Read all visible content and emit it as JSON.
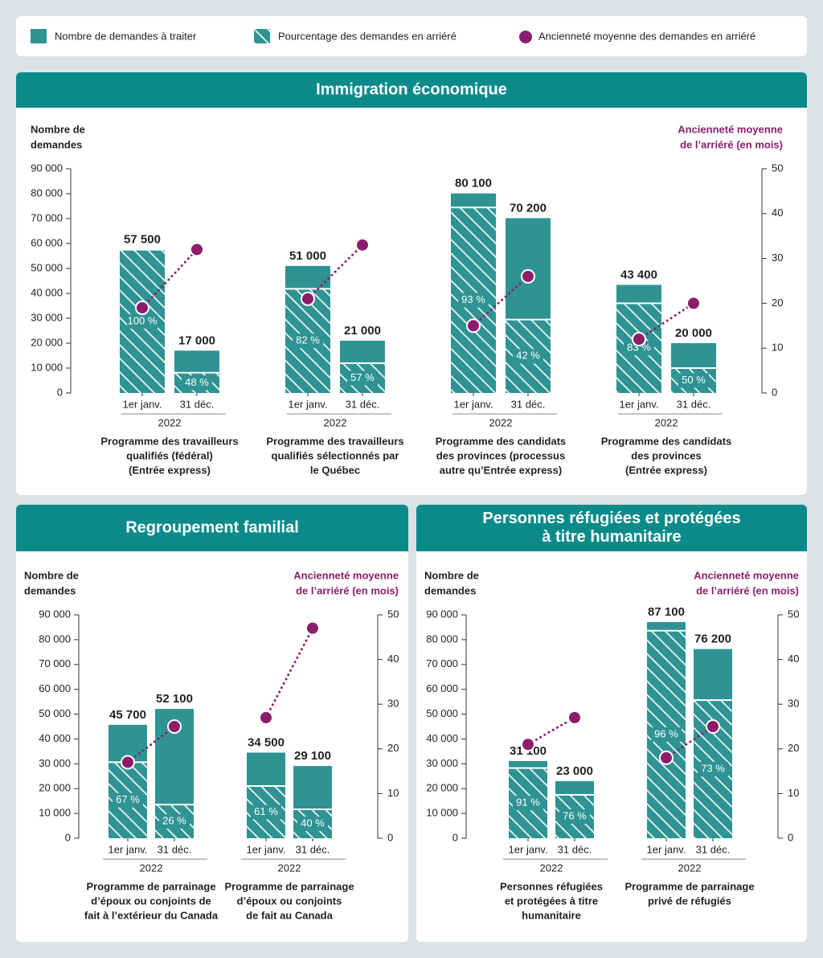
{
  "chart_data": [
    {
      "type": "bar",
      "title": [
        "Immigration économique"
      ],
      "ylabel": [
        "Nombre de",
        "demandes"
      ],
      "y2label": [
        "Ancienneté moyenne",
        "de l’arriéré (en mois)"
      ],
      "ylim": [
        0,
        90000
      ],
      "yticks": [
        0,
        {
          "value": 10000,
          "label": "10 000"
        },
        {
          "value": 20000,
          "label": "20 000"
        },
        {
          "value": 30000,
          "label": "30 000"
        },
        {
          "value": 40000,
          "label": "40 000"
        },
        {
          "value": 50000,
          "label": "50 000"
        },
        {
          "value": 60000,
          "label": "60 000"
        },
        {
          "value": 70000,
          "label": "70 000"
        },
        {
          "value": 80000,
          "label": "80 000"
        },
        {
          "value": 90000,
          "label": "90 000"
        }
      ],
      "y2lim": [
        0,
        50
      ],
      "y2ticks": [
        0,
        10,
        20,
        30,
        40,
        50
      ],
      "categories": [
        "1er janv.",
        "31 déc.",
        "1er janv.",
        "31 déc.",
        "1er janv.",
        "31 déc.",
        "1er janv.",
        "31 déc."
      ],
      "groups": [
        {
          "year": "2022",
          "name": [
            "Programme des travailleurs",
            "qualifiés (fédéral)",
            "(Entrée express)"
          ]
        },
        {
          "year": "2022",
          "name": [
            "Programme des travailleurs",
            "qualifiés sélectionnés par",
            "le Québec"
          ]
        },
        {
          "year": "2022",
          "name": [
            "Programme des candidats",
            "des provinces (processus",
            "autre qu’Entrée express)"
          ]
        },
        {
          "year": "2022",
          "name": [
            "Programme des candidats",
            "des provinces",
            "(Entrée express)"
          ]
        }
      ],
      "series": [
        {
          "name": "Nombre de demandes à traiter",
          "color": "#2e9392",
          "values": [
            57500,
            17000,
            51000,
            21000,
            80100,
            70200,
            43400,
            20000
          ],
          "value_labels": [
            "57 500",
            "17 000",
            "51 000",
            "21 000",
            "80 100",
            "70 200",
            "43 400",
            "20 000"
          ]
        },
        {
          "name": "Pourcentage des demandes en arriéré",
          "color": "#2e9392",
          "values": [
            100,
            48,
            82,
            57,
            93,
            42,
            83,
            50
          ],
          "value_labels": [
            "100 %",
            "48 %",
            "82 %",
            "57 %",
            "93 %",
            "42 %",
            "83 %",
            "50 %"
          ]
        },
        {
          "name": "Ancienneté moyenne des demandes en arriéré",
          "color": "#8b1d6b",
          "axis": "y2",
          "values": [
            19,
            32,
            21,
            33,
            15,
            26,
            12,
            20
          ]
        }
      ]
    },
    {
      "type": "bar",
      "title": [
        "Regroupement familial"
      ],
      "ylabel": [
        "Nombre de",
        "demandes"
      ],
      "y2label": [
        "Ancienneté moyenne",
        "de l’arriéré (en mois)"
      ],
      "ylim": [
        0,
        90000
      ],
      "yticks": [
        0,
        {
          "value": 10000,
          "label": "10 000"
        },
        {
          "value": 20000,
          "label": "20 000"
        },
        {
          "value": 30000,
          "label": "30 000"
        },
        {
          "value": 40000,
          "label": "40 000"
        },
        {
          "value": 50000,
          "label": "50 000"
        },
        {
          "value": 60000,
          "label": "60 000"
        },
        {
          "value": 70000,
          "label": "70 000"
        },
        {
          "value": 80000,
          "label": "80 000"
        },
        {
          "value": 90000,
          "label": "90 000"
        }
      ],
      "y2lim": [
        0,
        50
      ],
      "y2ticks": [
        0,
        10,
        20,
        30,
        40,
        50
      ],
      "categories": [
        "1er janv.",
        "31 déc.",
        "1er janv.",
        "31 déc."
      ],
      "groups": [
        {
          "year": "2022",
          "name": [
            "Programme de parrainage",
            "d’époux ou conjoints de",
            "fait à l’extérieur du Canada"
          ]
        },
        {
          "year": "2022",
          "name": [
            "Programme de parrainage",
            "d’époux ou conjoints",
            "de fait au Canada"
          ]
        }
      ],
      "series": [
        {
          "name": "Nombre de demandes à traiter",
          "color": "#2e9392",
          "values": [
            45700,
            52100,
            34500,
            29100
          ],
          "value_labels": [
            "45 700",
            "52 100",
            "34 500",
            "29 100"
          ]
        },
        {
          "name": "Pourcentage des demandes en arriéré",
          "color": "#2e9392",
          "values": [
            67,
            26,
            61,
            40
          ],
          "value_labels": [
            "67 %",
            "26 %",
            "61 %",
            "40 %"
          ]
        },
        {
          "name": "Ancienneté moyenne des demandes en arriéré",
          "color": "#8b1d6b",
          "axis": "y2",
          "values": [
            17,
            25,
            27,
            47
          ]
        }
      ]
    },
    {
      "type": "bar",
      "title": [
        "Personnes réfugiées et protégées",
        "à titre humanitaire"
      ],
      "ylabel": [
        "Nombre de",
        "demandes"
      ],
      "y2label": [
        "Ancienneté moyenne",
        "de l’arriéré (en mois)"
      ],
      "ylim": [
        0,
        90000
      ],
      "yticks": [
        0,
        {
          "value": 10000,
          "label": "10 000"
        },
        {
          "value": 20000,
          "label": "20 000"
        },
        {
          "value": 30000,
          "label": "30 000"
        },
        {
          "value": 40000,
          "label": "40 000"
        },
        {
          "value": 50000,
          "label": "50 000"
        },
        {
          "value": 60000,
          "label": "60 000"
        },
        {
          "value": 70000,
          "label": "70 000"
        },
        {
          "value": 80000,
          "label": "80 000"
        },
        {
          "value": 90000,
          "label": "90 000"
        }
      ],
      "y2lim": [
        0,
        50
      ],
      "y2ticks": [
        0,
        10,
        20,
        30,
        40,
        50
      ],
      "categories": [
        "1er janv.",
        "31 déc.",
        "1er janv.",
        "31 déc."
      ],
      "groups": [
        {
          "year": "2022",
          "name": [
            "Personnes réfugiées",
            "et protégées à titre",
            "humanitaire"
          ]
        },
        {
          "year": "2022",
          "name": [
            "Programme de parrainage",
            "privé de réfugiés"
          ]
        }
      ],
      "series": [
        {
          "name": "Nombre de demandes à traiter",
          "color": "#2e9392",
          "values": [
            31100,
            23000,
            87100,
            76200
          ],
          "value_labels": [
            "31 100",
            "23 000",
            "87 100",
            "76 200"
          ]
        },
        {
          "name": "Pourcentage des demandes en arriéré",
          "color": "#2e9392",
          "values": [
            91,
            76,
            96,
            73
          ],
          "value_labels": [
            "91 %",
            "76 %",
            "96 %",
            "73 %"
          ]
        },
        {
          "name": "Ancienneté moyenne des demandes en arriéré",
          "color": "#8b1d6b",
          "axis": "y2",
          "values": [
            21,
            27,
            18,
            25
          ]
        }
      ]
    }
  ]
}
